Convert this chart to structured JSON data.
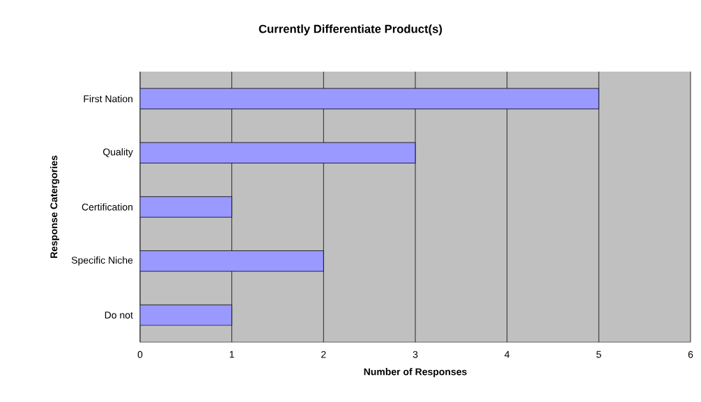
{
  "chart_data": {
    "type": "bar",
    "orientation": "horizontal",
    "title": "Currently Differentiate Product(s)",
    "xlabel": "Number of Responses",
    "ylabel": "Response Catergories",
    "categories": [
      "First Nation",
      "Quality",
      "Certification",
      "Specific Niche",
      "Do not"
    ],
    "values": [
      5,
      3,
      1,
      2,
      1
    ],
    "color": "#9999ff",
    "xlim": [
      0,
      6
    ],
    "xticks": [
      0,
      1,
      2,
      3,
      4,
      5,
      6
    ],
    "grid": "x"
  }
}
